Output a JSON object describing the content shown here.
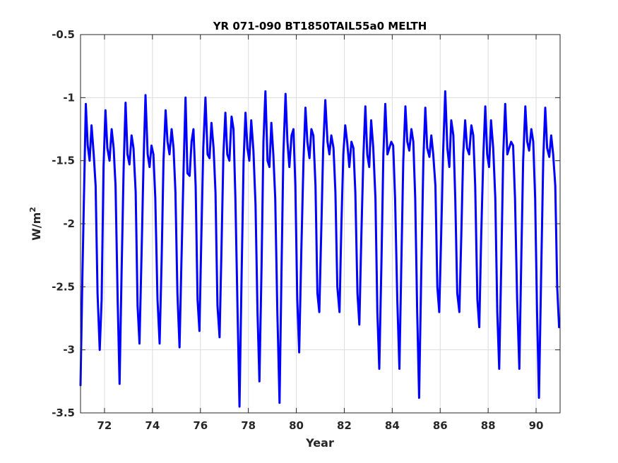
{
  "chart_data": {
    "type": "line",
    "title": "YR 071-090 BT1850TAIL55a0 MELTH",
    "xlabel": "Year",
    "ylabel_base": "W/m",
    "ylabel_sup": "2",
    "xlim": [
      71,
      91
    ],
    "ylim": [
      -3.5,
      -0.5
    ],
    "xticks": [
      72,
      74,
      76,
      78,
      80,
      82,
      84,
      86,
      88,
      90
    ],
    "yticks": [
      -3.5,
      -3,
      -2.5,
      -2,
      -1.5,
      -1,
      -0.5
    ],
    "xtick_labels": [
      "72",
      "74",
      "76",
      "78",
      "80",
      "82",
      "84",
      "86",
      "88",
      "90"
    ],
    "ytick_labels": [
      "-3.5",
      "-3",
      "-2.5",
      "-2",
      "-1.5",
      "-1",
      "-0.5"
    ],
    "grid": true,
    "line_color": "#0000ff",
    "series": [
      {
        "x": [
          71.0,
          71.08,
          71.22,
          71.3,
          71.38,
          71.46,
          71.55,
          71.63,
          71.71,
          71.8,
          71.88,
          71.96,
          72.04,
          72.12,
          72.21,
          72.3,
          72.38,
          72.46,
          72.55,
          72.63,
          72.71,
          72.8,
          72.88,
          72.96,
          73.04,
          73.13,
          73.21,
          73.3,
          73.38,
          73.46,
          73.55,
          73.63,
          73.71,
          73.8,
          73.88,
          73.96,
          74.04,
          74.12,
          74.21,
          74.3,
          74.38,
          74.46,
          74.55,
          74.63,
          74.71,
          74.8,
          74.88,
          74.96,
          75.04,
          75.13,
          75.21,
          75.3,
          75.38,
          75.46,
          75.55,
          75.63,
          75.71,
          75.8,
          75.88,
          75.96,
          76.04,
          76.12,
          76.21,
          76.3,
          76.38,
          76.46,
          76.55,
          76.63,
          76.71,
          76.8,
          76.88,
          76.96,
          77.04,
          77.12,
          77.21,
          77.3,
          77.38,
          77.46,
          77.55,
          77.63,
          77.71,
          77.8,
          77.88,
          77.96,
          78.04,
          78.12,
          78.21,
          78.3,
          78.38,
          78.46,
          78.55,
          78.63,
          78.71,
          78.8,
          78.88,
          78.96,
          79.04,
          79.12,
          79.21,
          79.3,
          79.38,
          79.46,
          79.55,
          79.63,
          79.71,
          79.8,
          79.88,
          79.96,
          80.04,
          80.12,
          80.21,
          80.3,
          80.38,
          80.46,
          80.55,
          80.63,
          80.71,
          80.8,
          80.88,
          80.96,
          81.04,
          81.12,
          81.21,
          81.3,
          81.38,
          81.46,
          81.55,
          81.63,
          81.71,
          81.8,
          81.88,
          81.96,
          82.04,
          82.12,
          82.21,
          82.3,
          82.38,
          82.46,
          82.55,
          82.63,
          82.71,
          82.8,
          82.88,
          82.96,
          83.04,
          83.12,
          83.21,
          83.3,
          83.38,
          83.46,
          83.55,
          83.63,
          83.71,
          83.8,
          83.88,
          83.96,
          84.04,
          84.12,
          84.21,
          84.3,
          84.38,
          84.46,
          84.55,
          84.63,
          84.71,
          84.8,
          84.88,
          84.96,
          85.04,
          85.12,
          85.21,
          85.3,
          85.38,
          85.46,
          85.55,
          85.63,
          85.71,
          85.8,
          85.88,
          85.96,
          86.04,
          86.12,
          86.21,
          86.3,
          86.38,
          86.46,
          86.55,
          86.63,
          86.71,
          86.8,
          86.88,
          86.96,
          87.04,
          87.12,
          87.21,
          87.3,
          87.38,
          87.46,
          87.55,
          87.63,
          87.71,
          87.8,
          87.88,
          87.96,
          88.04,
          88.12,
          88.21,
          88.3,
          88.38,
          88.46,
          88.55,
          88.63,
          88.71,
          88.8,
          88.88,
          88.96,
          89.04,
          89.12,
          89.21,
          89.3,
          89.38,
          89.46,
          89.55,
          89.63,
          89.71,
          89.8,
          89.88,
          89.96,
          90.04,
          90.12,
          90.21,
          90.3,
          90.38,
          90.46,
          90.55,
          90.63,
          90.71,
          90.8,
          90.88,
          90.96
        ],
        "y": [
          -3.28,
          -2.4,
          -1.05,
          -1.38,
          -1.5,
          -1.22,
          -1.45,
          -1.7,
          -2.55,
          -3.0,
          -2.6,
          -1.55,
          -1.1,
          -1.4,
          -1.5,
          -1.25,
          -1.4,
          -1.7,
          -2.6,
          -3.27,
          -2.4,
          -1.55,
          -1.04,
          -1.45,
          -1.53,
          -1.3,
          -1.4,
          -1.75,
          -2.65,
          -2.95,
          -2.2,
          -1.5,
          -0.98,
          -1.45,
          -1.55,
          -1.38,
          -1.45,
          -1.8,
          -2.6,
          -2.95,
          -2.3,
          -1.5,
          -1.1,
          -1.35,
          -1.45,
          -1.25,
          -1.4,
          -1.75,
          -2.55,
          -2.98,
          -2.3,
          -1.55,
          -1.0,
          -1.6,
          -1.62,
          -1.35,
          -1.25,
          -1.7,
          -2.6,
          -2.85,
          -2.1,
          -1.4,
          -1.0,
          -1.45,
          -1.48,
          -1.2,
          -1.4,
          -1.75,
          -2.65,
          -2.9,
          -2.2,
          -1.45,
          -1.12,
          -1.45,
          -1.5,
          -1.15,
          -1.25,
          -1.8,
          -2.7,
          -3.45,
          -2.5,
          -1.5,
          -1.12,
          -1.4,
          -1.5,
          -1.18,
          -1.42,
          -1.85,
          -2.7,
          -3.25,
          -2.35,
          -1.35,
          -0.95,
          -1.5,
          -1.55,
          -1.2,
          -1.45,
          -1.8,
          -2.7,
          -3.42,
          -2.4,
          -1.45,
          -0.97,
          -1.35,
          -1.55,
          -1.3,
          -1.25,
          -1.7,
          -2.6,
          -3.02,
          -2.2,
          -1.5,
          -1.08,
          -1.35,
          -1.48,
          -1.25,
          -1.3,
          -1.7,
          -2.55,
          -2.7,
          -2.05,
          -1.4,
          -1.02,
          -1.35,
          -1.45,
          -1.3,
          -1.4,
          -1.75,
          -2.5,
          -2.7,
          -2.0,
          -1.45,
          -1.22,
          -1.35,
          -1.55,
          -1.35,
          -1.4,
          -1.75,
          -2.55,
          -2.8,
          -2.1,
          -1.45,
          -1.07,
          -1.45,
          -1.55,
          -1.18,
          -1.4,
          -1.8,
          -2.7,
          -3.15,
          -2.3,
          -1.45,
          -1.05,
          -1.45,
          -1.4,
          -1.35,
          -1.38,
          -1.8,
          -2.6,
          -3.15,
          -2.3,
          -1.5,
          -1.07,
          -1.35,
          -1.42,
          -1.25,
          -1.35,
          -1.8,
          -2.7,
          -3.38,
          -2.4,
          -1.48,
          -1.08,
          -1.4,
          -1.47,
          -1.3,
          -1.45,
          -1.7,
          -2.5,
          -2.7,
          -2.1,
          -1.45,
          -0.95,
          -1.4,
          -1.55,
          -1.18,
          -1.3,
          -1.8,
          -2.55,
          -2.7,
          -2.1,
          -1.45,
          -1.18,
          -1.4,
          -1.45,
          -1.22,
          -1.3,
          -1.7,
          -2.6,
          -2.82,
          -2.1,
          -1.45,
          -1.07,
          -1.45,
          -1.55,
          -1.18,
          -1.4,
          -1.8,
          -2.7,
          -3.15,
          -2.3,
          -1.45,
          -1.05,
          -1.45,
          -1.4,
          -1.35,
          -1.38,
          -1.8,
          -2.6,
          -3.15,
          -2.3,
          -1.5,
          -1.07,
          -1.35,
          -1.42,
          -1.25,
          -1.35,
          -1.8,
          -2.7,
          -3.38,
          -2.4,
          -1.48,
          -1.08,
          -1.4,
          -1.47,
          -1.3,
          -1.45,
          -1.7,
          -2.5,
          -2.82
        ]
      }
    ]
  }
}
